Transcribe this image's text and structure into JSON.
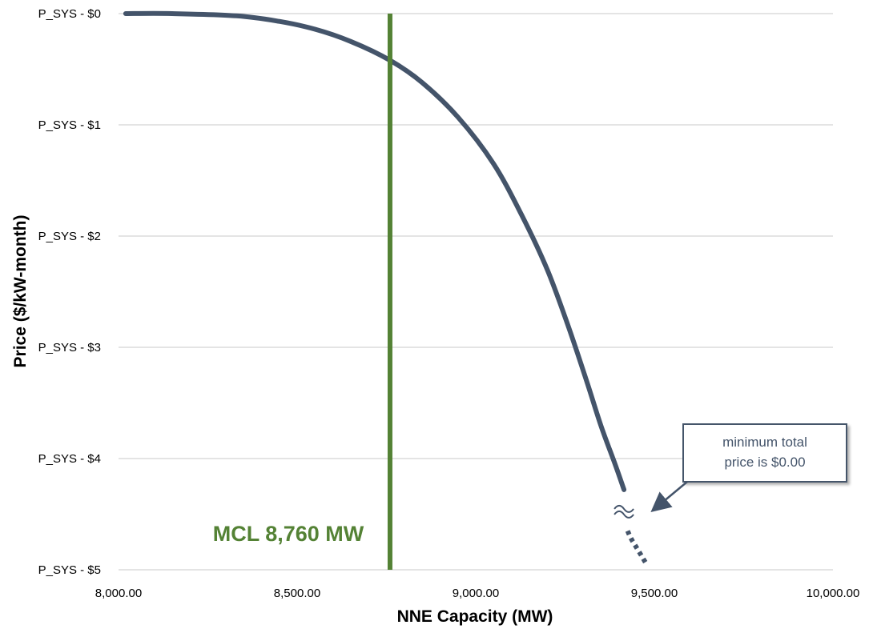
{
  "chart_data": {
    "type": "line",
    "title": "",
    "xlabel": "NNE Capacity (MW)",
    "ylabel": "Price ($/kW-month)",
    "xlim": [
      8000,
      10000
    ],
    "ylim": [
      0,
      5
    ],
    "y_inverted": true,
    "grid": "horizontal",
    "x_ticks": [
      {
        "value": 8000,
        "label": "8,000.00"
      },
      {
        "value": 8500,
        "label": "8,500.00"
      },
      {
        "value": 9000,
        "label": "9,000.00"
      },
      {
        "value": 9500,
        "label": "9,500.00"
      },
      {
        "value": 10000,
        "label": "10,000.00"
      }
    ],
    "y_ticks": [
      {
        "value": 0,
        "label": "P_SYS - $0"
      },
      {
        "value": 1,
        "label": "P_SYS - $1"
      },
      {
        "value": 2,
        "label": "P_SYS - $2"
      },
      {
        "value": 3,
        "label": "P_SYS - $3"
      },
      {
        "value": 4,
        "label": "P_SYS - $4"
      },
      {
        "value": 5,
        "label": "P_SYS - $5"
      }
    ],
    "series": [
      {
        "color": "#44546a",
        "style": "solid",
        "x": [
          8020,
          8150,
          8330,
          8450,
          8550,
          8650,
          8760,
          8850,
          8950,
          9050,
          9130,
          9200,
          9260,
          9310,
          9350,
          9390,
          9415
        ],
        "y": [
          0,
          0,
          0.02,
          0.07,
          0.14,
          0.25,
          0.42,
          0.62,
          0.93,
          1.35,
          1.82,
          2.3,
          2.82,
          3.3,
          3.7,
          4.05,
          4.28
        ]
      },
      {
        "color": "#44546a",
        "style": "dotted",
        "x": [
          9425,
          9435,
          9450,
          9465,
          9478
        ],
        "y": [
          4.65,
          4.72,
          4.8,
          4.88,
          4.95
        ]
      }
    ],
    "reference_line": {
      "x": 8760,
      "label": "MCL 8,760 MW",
      "color": "#548235"
    },
    "annotation": {
      "lines": [
        "minimum total",
        "price is $0.00"
      ],
      "color": "#44546a"
    }
  }
}
